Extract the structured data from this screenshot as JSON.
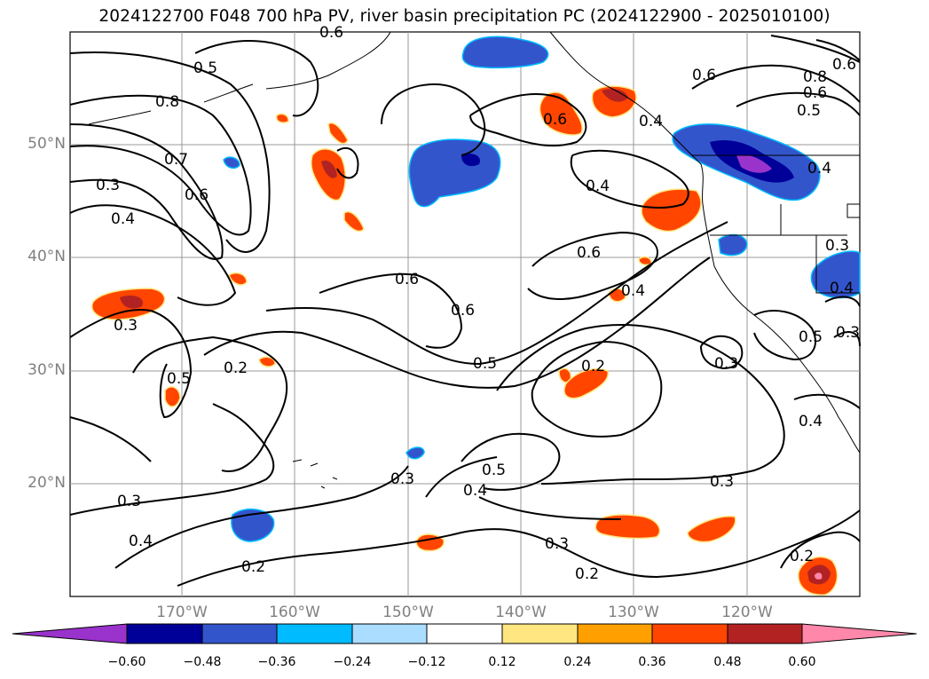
{
  "title": "2024122700 F048 700 hPa PV, river basin precipitation PC (2024122900 - 2025010100)",
  "lat_labels": [
    "50°N",
    "40°N",
    "30°N",
    "20°N"
  ],
  "lon_labels": [
    "170°W",
    "160°W",
    "150°W",
    "140°W",
    "130°W",
    "120°W"
  ],
  "colorbar": {
    "ticks": [
      "−0.60",
      "−0.48",
      "−0.36",
      "−0.24",
      "−0.12",
      "0.12",
      "0.24",
      "0.36",
      "0.48",
      "0.60"
    ],
    "colors": [
      "#9933cc",
      "#000099",
      "#3355cc",
      "#00bbff",
      "#aaddff",
      "#ffffff",
      "#ffe680",
      "#ffa000",
      "#ff4500",
      "#b22222",
      "#ff88aa"
    ]
  },
  "contour_labels": [
    "0.5",
    "0.8",
    "0.7",
    "0.6",
    "0.3",
    "0.4",
    "0.3",
    "0.5",
    "0.2",
    "0.6",
    "0.6",
    "0.5",
    "0.3",
    "0.4",
    "0.2",
    "0.3",
    "0.5",
    "0.4",
    "0.3",
    "0.2",
    "0.4",
    "0.6",
    "0.4",
    "0.2",
    "0.3",
    "0.3",
    "0.4",
    "0.2",
    "0.6",
    "0.6",
    "0.8",
    "0.6",
    "0.5",
    "0.4",
    "0.4",
    "0.3",
    "0.5",
    "0.3",
    "0.4",
    "0.6",
    "0.6"
  ]
}
